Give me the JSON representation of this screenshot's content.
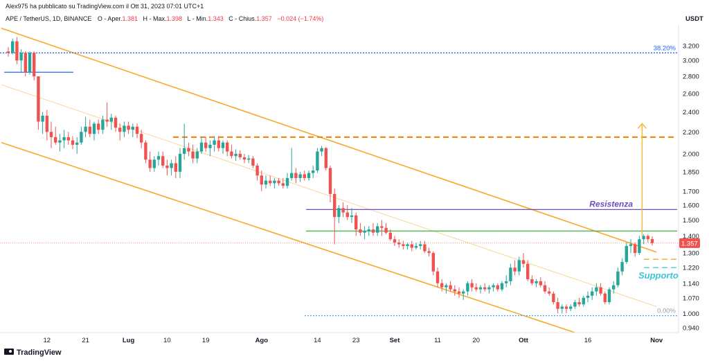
{
  "header": {
    "attribution": "Alex975 ha pubblicato su TradingView.com il Ott 31, 2023 07:01 UTC+1",
    "symbol": "APE / TetherUS, 1D, BINANCE",
    "open_label": "O - Aper.",
    "open": "1.381",
    "high_label": "H - Max.",
    "high": "1.398",
    "low_label": "L - Min.",
    "low": "1.343",
    "close_label": "C - Chius.",
    "close": "1.357",
    "change": "−0.024 (−1.74%)"
  },
  "footer": {
    "brand": "TradingView"
  },
  "colors": {
    "up": "#26a69a",
    "down": "#ef5350",
    "channel": "#f7a928",
    "resistance": "#6c4fbf",
    "support_text": "#3cc6d8",
    "level": "#4caf50"
  },
  "chart_data": {
    "type": "candlestick",
    "title": "APE / TetherUS, 1D, BINANCE",
    "currency": "USDT",
    "y_axis": {
      "scale": "log",
      "ylim": [
        0.92,
        3.5
      ],
      "ticks": [
        "3.200",
        "3.000",
        "2.800",
        "2.600",
        "2.400",
        "2.200",
        "2.000",
        "1.850",
        "1.700",
        "1.600",
        "1.500",
        "1.400",
        "1.300",
        "1.220",
        "1.140",
        "1.070",
        "1.000",
        "0.940"
      ]
    },
    "x_axis": {
      "ticks": [
        {
          "label": "12",
          "date": "2023-06-12"
        },
        {
          "label": "21",
          "date": "2023-06-21"
        },
        {
          "label": "Lug",
          "date": "2023-07-01"
        },
        {
          "label": "10",
          "date": "2023-07-10"
        },
        {
          "label": "19",
          "date": "2023-07-19"
        },
        {
          "label": "Ago",
          "date": "2023-08-01"
        },
        {
          "label": "14",
          "date": "2023-08-14"
        },
        {
          "label": "23",
          "date": "2023-08-23"
        },
        {
          "label": "Set",
          "date": "2023-09-01"
        },
        {
          "label": "11",
          "date": "2023-09-11"
        },
        {
          "label": "20",
          "date": "2023-09-20"
        },
        {
          "label": "Ott",
          "date": "2023-10-01"
        },
        {
          "label": "16",
          "date": "2023-10-16"
        },
        {
          "label": "Nov",
          "date": "2023-11-01"
        }
      ]
    },
    "last_price_label": "1.357",
    "candles": [
      [
        "2023-06-03",
        3.12,
        3.18,
        3.05,
        3.1
      ],
      [
        "2023-06-04",
        3.1,
        3.3,
        3.08,
        3.26
      ],
      [
        "2023-06-05",
        3.26,
        3.32,
        2.95,
        3.0
      ],
      [
        "2023-06-06",
        3.0,
        3.15,
        2.85,
        3.1
      ],
      [
        "2023-06-07",
        3.1,
        3.12,
        2.8,
        2.85
      ],
      [
        "2023-06-08",
        2.85,
        3.12,
        2.82,
        3.1
      ],
      [
        "2023-06-09",
        3.1,
        3.12,
        2.75,
        2.8
      ],
      [
        "2023-06-10",
        2.8,
        2.8,
        2.22,
        2.3
      ],
      [
        "2023-06-11",
        2.3,
        2.4,
        2.18,
        2.36
      ],
      [
        "2023-06-12",
        2.36,
        2.42,
        2.12,
        2.2
      ],
      [
        "2023-06-13",
        2.2,
        2.3,
        2.05,
        2.15
      ],
      [
        "2023-06-14",
        2.15,
        2.25,
        2.08,
        2.1
      ],
      [
        "2023-06-15",
        2.1,
        2.18,
        2.02,
        2.12
      ],
      [
        "2023-06-16",
        2.12,
        2.22,
        2.05,
        2.15
      ],
      [
        "2023-06-17",
        2.15,
        2.2,
        2.08,
        2.12
      ],
      [
        "2023-06-18",
        2.12,
        2.16,
        2.04,
        2.08
      ],
      [
        "2023-06-19",
        2.08,
        2.15,
        2.0,
        2.1
      ],
      [
        "2023-06-20",
        2.1,
        2.25,
        2.08,
        2.2
      ],
      [
        "2023-06-21",
        2.2,
        2.35,
        2.15,
        2.25
      ],
      [
        "2023-06-22",
        2.25,
        2.32,
        2.15,
        2.18
      ],
      [
        "2023-06-23",
        2.18,
        2.3,
        2.12,
        2.28
      ],
      [
        "2023-06-24",
        2.28,
        2.32,
        2.18,
        2.22
      ],
      [
        "2023-06-25",
        2.22,
        2.36,
        2.18,
        2.32
      ],
      [
        "2023-06-26",
        2.32,
        2.5,
        2.25,
        2.3
      ],
      [
        "2023-06-27",
        2.3,
        2.38,
        2.22,
        2.34
      ],
      [
        "2023-06-28",
        2.34,
        2.36,
        2.2,
        2.24
      ],
      [
        "2023-06-29",
        2.24,
        2.28,
        2.12,
        2.2
      ],
      [
        "2023-06-30",
        2.2,
        2.3,
        2.15,
        2.26
      ],
      [
        "2023-07-01",
        2.26,
        2.3,
        2.18,
        2.22
      ],
      [
        "2023-07-02",
        2.22,
        2.28,
        2.15,
        2.25
      ],
      [
        "2023-07-03",
        2.25,
        2.28,
        2.14,
        2.18
      ],
      [
        "2023-07-04",
        2.18,
        2.22,
        2.05,
        2.1
      ],
      [
        "2023-07-05",
        2.1,
        2.12,
        1.92,
        1.95
      ],
      [
        "2023-07-06",
        1.95,
        2.02,
        1.85,
        1.88
      ],
      [
        "2023-07-07",
        1.88,
        1.98,
        1.85,
        1.95
      ],
      [
        "2023-07-08",
        1.95,
        2.02,
        1.9,
        1.98
      ],
      [
        "2023-07-09",
        1.98,
        2.02,
        1.88,
        1.9
      ],
      [
        "2023-07-10",
        1.9,
        1.95,
        1.82,
        1.88
      ],
      [
        "2023-07-11",
        1.88,
        1.95,
        1.82,
        1.92
      ],
      [
        "2023-07-12",
        1.92,
        1.98,
        1.8,
        1.85
      ],
      [
        "2023-07-13",
        1.85,
        2.05,
        1.8,
        2.0
      ],
      [
        "2023-07-14",
        2.0,
        2.28,
        1.95,
        2.05
      ],
      [
        "2023-07-15",
        2.05,
        2.1,
        1.98,
        2.02
      ],
      [
        "2023-07-16",
        2.02,
        2.08,
        1.92,
        1.96
      ],
      [
        "2023-07-17",
        1.96,
        2.05,
        1.92,
        2.02
      ],
      [
        "2023-07-18",
        2.02,
        2.15,
        2.0,
        2.1
      ],
      [
        "2023-07-19",
        2.1,
        2.15,
        2.02,
        2.05
      ],
      [
        "2023-07-20",
        2.05,
        2.12,
        1.98,
        2.08
      ],
      [
        "2023-07-21",
        2.08,
        2.16,
        2.02,
        2.12
      ],
      [
        "2023-07-22",
        2.12,
        2.16,
        2.02,
        2.05
      ],
      [
        "2023-07-23",
        2.05,
        2.12,
        2.0,
        2.1
      ],
      [
        "2023-07-24",
        2.1,
        2.12,
        1.98,
        2.02
      ],
      [
        "2023-07-25",
        2.02,
        2.08,
        1.96,
        1.98
      ],
      [
        "2023-07-26",
        1.98,
        2.04,
        1.94,
        2.0
      ],
      [
        "2023-07-27",
        2.0,
        2.03,
        1.95,
        1.97
      ],
      [
        "2023-07-28",
        1.97,
        2.0,
        1.92,
        1.95
      ],
      [
        "2023-07-29",
        1.95,
        1.99,
        1.92,
        1.96
      ],
      [
        "2023-07-30",
        1.96,
        1.98,
        1.88,
        1.9
      ],
      [
        "2023-07-31",
        1.9,
        1.92,
        1.78,
        1.82
      ],
      [
        "2023-08-01",
        1.82,
        1.86,
        1.7,
        1.75
      ],
      [
        "2023-08-02",
        1.75,
        1.82,
        1.72,
        1.78
      ],
      [
        "2023-08-03",
        1.78,
        1.82,
        1.74,
        1.76
      ],
      [
        "2023-08-04",
        1.76,
        1.8,
        1.72,
        1.78
      ],
      [
        "2023-08-05",
        1.78,
        1.8,
        1.74,
        1.76
      ],
      [
        "2023-08-06",
        1.76,
        1.8,
        1.72,
        1.74
      ],
      [
        "2023-08-07",
        1.74,
        1.84,
        1.72,
        1.8
      ],
      [
        "2023-08-08",
        1.8,
        2.05,
        1.78,
        1.84
      ],
      [
        "2023-08-09",
        1.84,
        1.88,
        1.76,
        1.8
      ],
      [
        "2023-08-10",
        1.8,
        1.85,
        1.77,
        1.83
      ],
      [
        "2023-08-11",
        1.83,
        1.86,
        1.78,
        1.8
      ],
      [
        "2023-08-12",
        1.8,
        1.86,
        1.78,
        1.84
      ],
      [
        "2023-08-13",
        1.84,
        1.9,
        1.8,
        1.86
      ],
      [
        "2023-08-14",
        1.86,
        2.05,
        1.84,
        2.02
      ],
      [
        "2023-08-15",
        2.02,
        2.07,
        1.98,
        2.05
      ],
      [
        "2023-08-16",
        2.05,
        2.06,
        1.86,
        1.88
      ],
      [
        "2023-08-17",
        1.88,
        1.9,
        1.62,
        1.68
      ],
      [
        "2023-08-18",
        1.68,
        1.72,
        1.35,
        1.52
      ],
      [
        "2023-08-19",
        1.52,
        1.6,
        1.48,
        1.58
      ],
      [
        "2023-08-20",
        1.58,
        1.62,
        1.52,
        1.55
      ],
      [
        "2023-08-21",
        1.55,
        1.6,
        1.5,
        1.52
      ],
      [
        "2023-08-22",
        1.52,
        1.58,
        1.48,
        1.53
      ],
      [
        "2023-08-23",
        1.53,
        1.55,
        1.4,
        1.44
      ],
      [
        "2023-08-24",
        1.44,
        1.48,
        1.4,
        1.42
      ],
      [
        "2023-08-25",
        1.42,
        1.46,
        1.38,
        1.43
      ],
      [
        "2023-08-26",
        1.43,
        1.46,
        1.4,
        1.44
      ],
      [
        "2023-08-27",
        1.44,
        1.48,
        1.4,
        1.42
      ],
      [
        "2023-08-28",
        1.42,
        1.48,
        1.4,
        1.46
      ],
      [
        "2023-08-29",
        1.46,
        1.5,
        1.4,
        1.45
      ],
      [
        "2023-08-30",
        1.45,
        1.48,
        1.41,
        1.42
      ],
      [
        "2023-08-31",
        1.42,
        1.44,
        1.37,
        1.38
      ],
      [
        "2023-09-01",
        1.38,
        1.4,
        1.34,
        1.36
      ],
      [
        "2023-09-02",
        1.36,
        1.38,
        1.33,
        1.35
      ],
      [
        "2023-09-03",
        1.35,
        1.37,
        1.32,
        1.34
      ],
      [
        "2023-09-04",
        1.34,
        1.36,
        1.32,
        1.35
      ],
      [
        "2023-09-05",
        1.35,
        1.37,
        1.31,
        1.33
      ],
      [
        "2023-09-06",
        1.33,
        1.36,
        1.32,
        1.34
      ],
      [
        "2023-09-07",
        1.34,
        1.37,
        1.32,
        1.35
      ],
      [
        "2023-09-08",
        1.35,
        1.37,
        1.3,
        1.31
      ],
      [
        "2023-09-09",
        1.31,
        1.33,
        1.28,
        1.3
      ],
      [
        "2023-09-10",
        1.3,
        1.31,
        1.18,
        1.2
      ],
      [
        "2023-09-11",
        1.2,
        1.22,
        1.12,
        1.14
      ],
      [
        "2023-09-12",
        1.14,
        1.16,
        1.1,
        1.12
      ],
      [
        "2023-09-13",
        1.12,
        1.14,
        1.09,
        1.13
      ],
      [
        "2023-09-14",
        1.13,
        1.15,
        1.1,
        1.11
      ],
      [
        "2023-09-15",
        1.11,
        1.13,
        1.08,
        1.1
      ],
      [
        "2023-09-16",
        1.1,
        1.12,
        1.07,
        1.09
      ],
      [
        "2023-09-17",
        1.09,
        1.11,
        1.06,
        1.1
      ],
      [
        "2023-09-18",
        1.1,
        1.15,
        1.08,
        1.14
      ],
      [
        "2023-09-19",
        1.14,
        1.16,
        1.1,
        1.12
      ],
      [
        "2023-09-20",
        1.12,
        1.14,
        1.1,
        1.11
      ],
      [
        "2023-09-21",
        1.11,
        1.13,
        1.09,
        1.12
      ],
      [
        "2023-09-22",
        1.12,
        1.14,
        1.1,
        1.11
      ],
      [
        "2023-09-23",
        1.11,
        1.13,
        1.09,
        1.12
      ],
      [
        "2023-09-24",
        1.12,
        1.14,
        1.1,
        1.13
      ],
      [
        "2023-09-25",
        1.13,
        1.14,
        1.1,
        1.11
      ],
      [
        "2023-09-26",
        1.11,
        1.15,
        1.1,
        1.14
      ],
      [
        "2023-09-27",
        1.14,
        1.18,
        1.12,
        1.15
      ],
      [
        "2023-09-28",
        1.15,
        1.24,
        1.13,
        1.22
      ],
      [
        "2023-09-29",
        1.22,
        1.26,
        1.18,
        1.2
      ],
      [
        "2023-09-30",
        1.2,
        1.28,
        1.18,
        1.26
      ],
      [
        "2023-10-01",
        1.26,
        1.3,
        1.22,
        1.24
      ],
      [
        "2023-10-02",
        1.24,
        1.26,
        1.15,
        1.16
      ],
      [
        "2023-10-03",
        1.16,
        1.18,
        1.13,
        1.14
      ],
      [
        "2023-10-04",
        1.14,
        1.16,
        1.12,
        1.15
      ],
      [
        "2023-10-05",
        1.15,
        1.17,
        1.12,
        1.13
      ],
      [
        "2023-10-06",
        1.13,
        1.15,
        1.09,
        1.1
      ],
      [
        "2023-10-07",
        1.1,
        1.12,
        1.08,
        1.09
      ],
      [
        "2023-10-08",
        1.09,
        1.1,
        1.04,
        1.05
      ],
      [
        "2023-10-09",
        1.05,
        1.07,
        1.0,
        1.02
      ],
      [
        "2023-10-10",
        1.02,
        1.04,
        1.0,
        1.03
      ],
      [
        "2023-10-11",
        1.03,
        1.04,
        1.0,
        1.02
      ],
      [
        "2023-10-12",
        1.02,
        1.04,
        1.01,
        1.03
      ],
      [
        "2023-10-13",
        1.03,
        1.06,
        1.02,
        1.05
      ],
      [
        "2023-10-14",
        1.05,
        1.07,
        1.03,
        1.04
      ],
      [
        "2023-10-15",
        1.04,
        1.08,
        1.03,
        1.07
      ],
      [
        "2023-10-16",
        1.07,
        1.1,
        1.05,
        1.08
      ],
      [
        "2023-10-17",
        1.08,
        1.12,
        1.06,
        1.1
      ],
      [
        "2023-10-18",
        1.1,
        1.14,
        1.08,
        1.12
      ],
      [
        "2023-10-19",
        1.12,
        1.14,
        1.08,
        1.09
      ],
      [
        "2023-10-20",
        1.09,
        1.1,
        1.04,
        1.05
      ],
      [
        "2023-10-21",
        1.05,
        1.12,
        1.04,
        1.11
      ],
      [
        "2023-10-22",
        1.11,
        1.15,
        1.09,
        1.13
      ],
      [
        "2023-10-23",
        1.13,
        1.22,
        1.12,
        1.2
      ],
      [
        "2023-10-24",
        1.2,
        1.27,
        1.18,
        1.25
      ],
      [
        "2023-10-25",
        1.25,
        1.36,
        1.24,
        1.34
      ],
      [
        "2023-10-26",
        1.34,
        1.38,
        1.3,
        1.35
      ],
      [
        "2023-10-27",
        1.35,
        1.36,
        1.28,
        1.3
      ],
      [
        "2023-10-28",
        1.3,
        1.4,
        1.29,
        1.38
      ],
      [
        "2023-10-29",
        1.38,
        1.41,
        1.35,
        1.4
      ],
      [
        "2023-10-30",
        1.4,
        1.41,
        1.36,
        1.38
      ],
      [
        "2023-10-31",
        1.381,
        1.398,
        1.343,
        1.357
      ]
    ],
    "levels": [
      {
        "name": "fib-38-20",
        "price": 3.1,
        "label": "38.20%",
        "style": "dotted",
        "color": "#2962ff"
      },
      {
        "name": "fib-0",
        "price": 0.99,
        "label": "0.00%",
        "style": "dotted",
        "color": "#42a5f5"
      },
      {
        "name": "early-level",
        "price": 2.85,
        "label": "",
        "style": "solid",
        "color": "#2962ff"
      },
      {
        "name": "resistance-level",
        "price": 1.57,
        "label": "Resistenza",
        "style": "solid",
        "color": "#6c4fbf"
      },
      {
        "name": "green-level",
        "price": 1.43,
        "label": "",
        "style": "solid",
        "color": "#4caf50"
      },
      {
        "name": "target-level",
        "price": 2.15,
        "label": "",
        "style": "dashed",
        "color": "#f57c00"
      },
      {
        "name": "support-level",
        "price": 1.22,
        "label": "Supporto",
        "style": "dashed",
        "color": "#3cc6d8"
      },
      {
        "name": "small-orange-level",
        "price": 1.265,
        "label": "",
        "style": "dashed",
        "color": "#f7a928"
      }
    ],
    "channel": {
      "upper": [
        [
          "2023-06-03",
          3.45
        ],
        [
          "2023-11-01",
          1.305
        ]
      ],
      "middle": [
        [
          "2023-06-03",
          2.7
        ],
        [
          "2023-11-01",
          1.03
        ]
      ],
      "lower": [
        [
          "2023-06-03",
          2.1
        ],
        [
          "2023-10-13",
          0.92
        ]
      ]
    },
    "target_arrow": {
      "date": "2023-10-28",
      "from": 1.4,
      "to": 2.28
    }
  }
}
